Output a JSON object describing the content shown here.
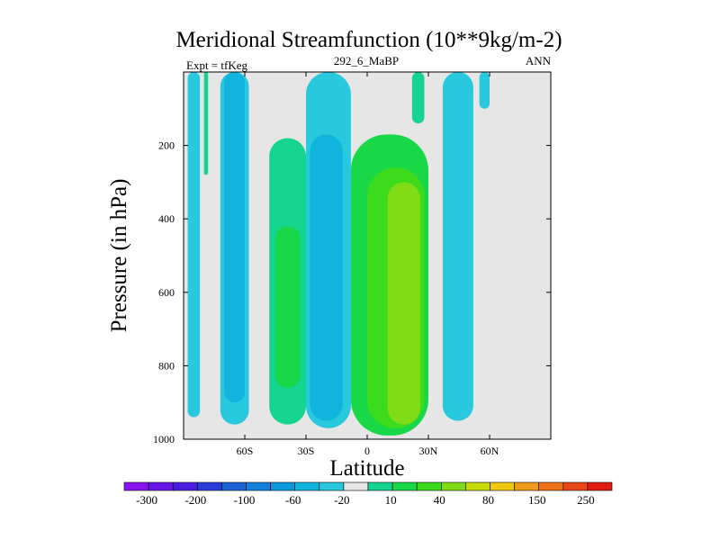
{
  "chart_data": {
    "type": "heatmap",
    "title": "Meridional Streamfunction (10**9kg/m-2)",
    "left_label": "Expt = tfKeg",
    "center_label": "292_6_MaBP",
    "right_label": "ANN",
    "xlabel": "Latitude",
    "ylabel": "Pressure (in hPa)",
    "x_ticks": [
      {
        "value": -60,
        "label": "60S"
      },
      {
        "value": -30,
        "label": "30S"
      },
      {
        "value": 0,
        "label": "0"
      },
      {
        "value": 30,
        "label": "30N"
      },
      {
        "value": 60,
        "label": "60N"
      }
    ],
    "y_ticks": [
      {
        "value": 200,
        "label": "200"
      },
      {
        "value": 400,
        "label": "400"
      },
      {
        "value": 600,
        "label": "600"
      },
      {
        "value": 800,
        "label": "800"
      },
      {
        "value": 1000,
        "label": "1000"
      }
    ],
    "xlim": [
      -90,
      90
    ],
    "ylim": [
      1000,
      0
    ],
    "y_reversed": true,
    "grid": false,
    "colorbar": {
      "levels": [
        "-300",
        "-200",
        "-100",
        "-60",
        "-20",
        "10",
        "40",
        "80",
        "150",
        "250"
      ],
      "colors": [
        "#8a14f0",
        "#6a18e8",
        "#4a1ee0",
        "#2c3cd8",
        "#1a62d6",
        "#1480de",
        "#0c98dc",
        "#10b4dc",
        "#28c8de",
        "#e6e6e6",
        "#14d490",
        "#18d848",
        "#3cdc1c",
        "#80dc14",
        "#c8dc0c",
        "#f0c810",
        "#f09c18",
        "#f07018",
        "#e84818",
        "#e01c10"
      ]
    },
    "contour_regions": [
      {
        "lat": [
          -88,
          -82
        ],
        "p": [
          0,
          940
        ],
        "level": "-20"
      },
      {
        "lat": [
          -80,
          -78
        ],
        "p": [
          0,
          280
        ],
        "level": "10"
      },
      {
        "lat": [
          -72,
          -58
        ],
        "p": [
          0,
          960
        ],
        "level": "-20"
      },
      {
        "lat": [
          -70,
          -60
        ],
        "p": [
          0,
          900
        ],
        "level": "-60"
      },
      {
        "lat": [
          -48,
          -30
        ],
        "p": [
          180,
          960
        ],
        "level": "10"
      },
      {
        "lat": [
          -45,
          -33
        ],
        "p": [
          420,
          860
        ],
        "level": "40"
      },
      {
        "lat": [
          -30,
          -8
        ],
        "p": [
          0,
          970
        ],
        "level": "-20"
      },
      {
        "lat": [
          -28,
          -12
        ],
        "p": [
          170,
          950
        ],
        "level": "-60"
      },
      {
        "lat": [
          -8,
          30
        ],
        "p": [
          170,
          990
        ],
        "level": "40"
      },
      {
        "lat": [
          0,
          28
        ],
        "p": [
          260,
          970
        ],
        "level": "80"
      },
      {
        "lat": [
          10,
          26
        ],
        "p": [
          300,
          960
        ],
        "level": "150"
      },
      {
        "lat": [
          22,
          28
        ],
        "p": [
          0,
          140
        ],
        "level": "10"
      },
      {
        "lat": [
          37,
          52
        ],
        "p": [
          0,
          950
        ],
        "level": "-20"
      },
      {
        "lat": [
          55,
          60
        ],
        "p": [
          0,
          100
        ],
        "level": "-20"
      }
    ]
  }
}
